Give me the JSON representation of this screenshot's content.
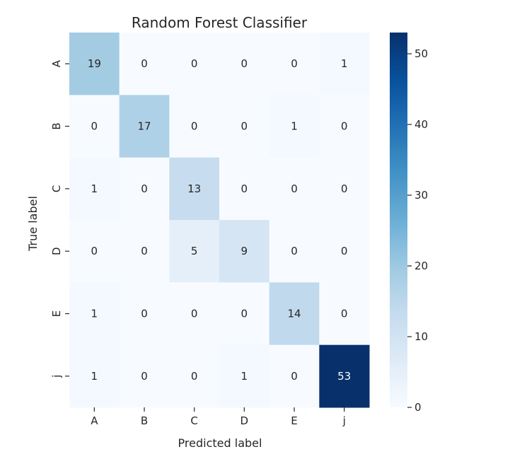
{
  "chart_data": {
    "type": "heatmap",
    "title": "Random Forest Classifier",
    "xlabel": "Predicted label",
    "ylabel": "True label",
    "x_categories": [
      "A",
      "B",
      "C",
      "D",
      "E",
      "j"
    ],
    "y_categories": [
      "A",
      "B",
      "C",
      "D",
      "E",
      "j"
    ],
    "values": [
      [
        19,
        0,
        0,
        0,
        0,
        1
      ],
      [
        0,
        17,
        0,
        0,
        1,
        0
      ],
      [
        1,
        0,
        13,
        0,
        0,
        0
      ],
      [
        0,
        0,
        5,
        9,
        0,
        0
      ],
      [
        1,
        0,
        0,
        0,
        14,
        0
      ],
      [
        1,
        0,
        0,
        1,
        0,
        53
      ]
    ],
    "colormap": "Blues",
    "vmin": 0,
    "vmax": 53,
    "colorbar_ticks": [
      0,
      10,
      20,
      30,
      40,
      50
    ],
    "colorbar_tick_labels": [
      "0",
      "10",
      "20",
      "30",
      "40",
      "50"
    ],
    "annotations": true,
    "grid": false,
    "colorbar_position": "right",
    "colors": {
      "low": "#f7fbff",
      "high": "#08306b",
      "text_dark": "#262626",
      "text_light": "#ffffff"
    }
  }
}
